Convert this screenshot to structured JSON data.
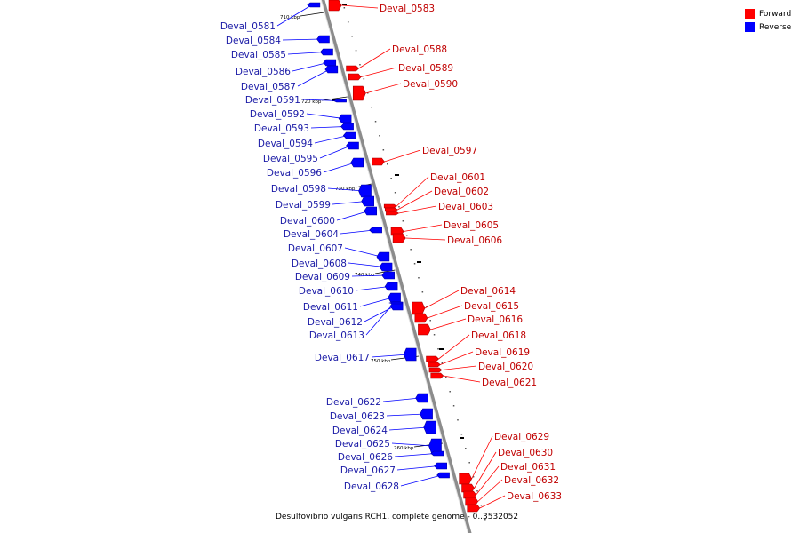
{
  "legend": {
    "forward_label": "Forward",
    "reverse_label": "Reverse",
    "forward_color": "#ff0000",
    "reverse_color": "#0000ff"
  },
  "caption": "Desulfovibrio vulgaris RCH1, complete genome - 0..3532052",
  "colors": {
    "forward": "#ff0000",
    "reverse": "#0000ff",
    "backbone": "#8c8c8c",
    "forward_text": "#c00000",
    "reverse_text": "#1a1aa6"
  },
  "ticks": [
    "710 kbp",
    "720 kbp",
    "730 kbp",
    "740 kbp",
    "750 kbp",
    "760 kbp"
  ],
  "genes_forward": [
    "Deval_0583",
    "Deval_0588",
    "Deval_0589",
    "Deval_0590",
    "Deval_0597",
    "Deval_0601",
    "Deval_0602",
    "Deval_0603",
    "Deval_0605",
    "Deval_0606",
    "Deval_0614",
    "Deval_0615",
    "Deval_0616",
    "Deval_0618",
    "Deval_0619",
    "Deval_0620",
    "Deval_0621",
    "Deval_0629",
    "Deval_0630",
    "Deval_0631",
    "Deval_0632",
    "Deval_0633"
  ],
  "genes_reverse": [
    "Deval_0581",
    "Deval_0584",
    "Deval_0585",
    "Deval_0586",
    "Deval_0587",
    "Deval_0591",
    "Deval_0592",
    "Deval_0593",
    "Deval_0594",
    "Deval_0595",
    "Deval_0596",
    "Deval_0598",
    "Deval_0599",
    "Deval_0600",
    "Deval_0604",
    "Deval_0607",
    "Deval_0608",
    "Deval_0609",
    "Deval_0610",
    "Deval_0611",
    "Deval_0612",
    "Deval_0613",
    "Deval_0617",
    "Deval_0622",
    "Deval_0623",
    "Deval_0624",
    "Deval_0625",
    "Deval_0626",
    "Deval_0627",
    "Deval_0628"
  ]
}
